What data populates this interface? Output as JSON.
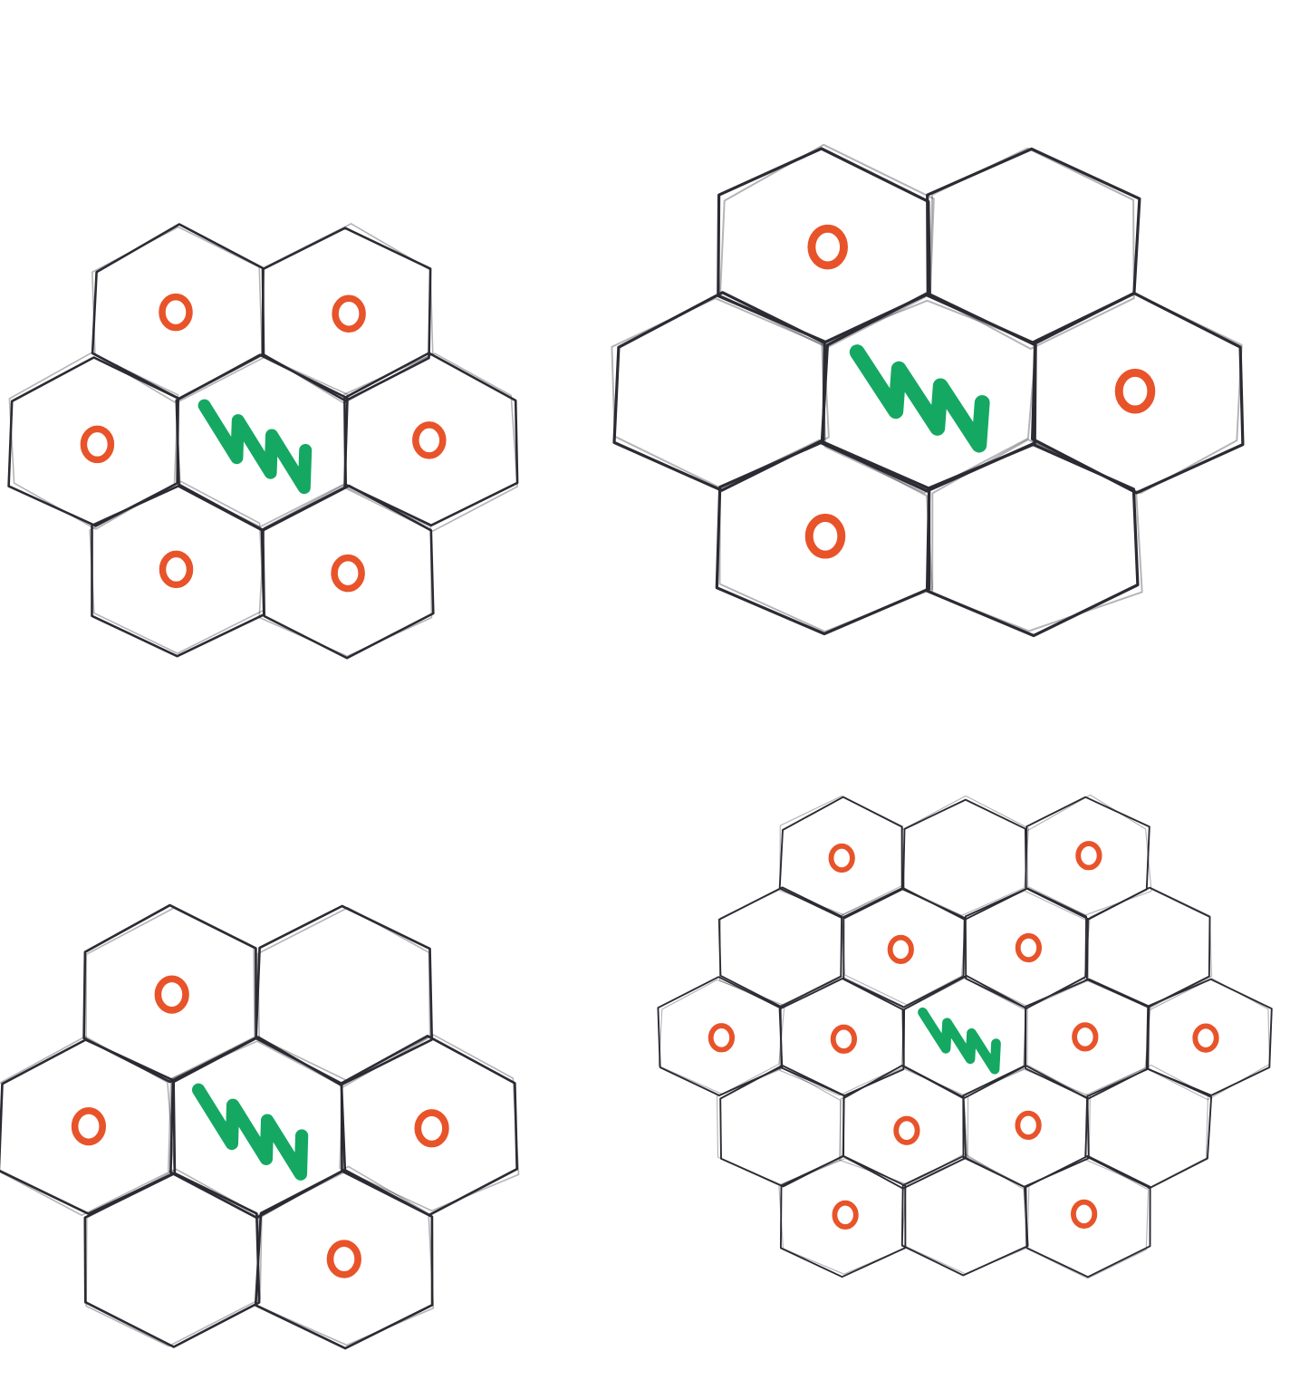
{
  "colors": {
    "background": "#ffffff",
    "outline": "#2b2b33",
    "marker": "#e8532a",
    "highlight": "#15a862"
  },
  "legend": [],
  "panels": [
    {
      "id": "top-left",
      "cells": [
        {
          "row": -2,
          "col": -0.5,
          "marker": "ring"
        },
        {
          "row": -2,
          "col": 0.5,
          "marker": "ring"
        },
        {
          "row": -1,
          "col": -1,
          "marker": "ring"
        },
        {
          "row": -1,
          "col": 0,
          "marker": "zigzag"
        },
        {
          "row": -1,
          "col": 1,
          "marker": "ring"
        },
        {
          "row": 0,
          "col": -0.5,
          "marker": "ring"
        },
        {
          "row": 0,
          "col": 0.5,
          "marker": "ring"
        }
      ]
    },
    {
      "id": "top-right",
      "cells": [
        {
          "row": -2,
          "col": -0.5,
          "marker": "ring"
        },
        {
          "row": -2,
          "col": 0.5,
          "marker": "none"
        },
        {
          "row": -1,
          "col": -1,
          "marker": "none"
        },
        {
          "row": -1,
          "col": 0,
          "marker": "zigzag"
        },
        {
          "row": -1,
          "col": 1,
          "marker": "ring"
        },
        {
          "row": 0,
          "col": -0.5,
          "marker": "ring"
        },
        {
          "row": 0,
          "col": 0.5,
          "marker": "none"
        }
      ]
    },
    {
      "id": "bottom-left",
      "cells": [
        {
          "row": -2,
          "col": -0.5,
          "marker": "ring"
        },
        {
          "row": -2,
          "col": 0.5,
          "marker": "none"
        },
        {
          "row": -1,
          "col": -1,
          "marker": "ring"
        },
        {
          "row": -1,
          "col": 0,
          "marker": "zigzag"
        },
        {
          "row": -1,
          "col": 1,
          "marker": "ring"
        },
        {
          "row": 0,
          "col": -0.5,
          "marker": "none"
        },
        {
          "row": 0,
          "col": 0.5,
          "marker": "ring"
        }
      ]
    },
    {
      "id": "bottom-right",
      "cells": [
        {
          "row": -2,
          "col": -1,
          "marker": "ring"
        },
        {
          "row": -2,
          "col": 0,
          "marker": "none"
        },
        {
          "row": -2,
          "col": 1,
          "marker": "ring"
        },
        {
          "row": -1,
          "col": -1.5,
          "marker": "none"
        },
        {
          "row": -1,
          "col": -0.5,
          "marker": "ring"
        },
        {
          "row": -1,
          "col": 0.5,
          "marker": "ring"
        },
        {
          "row": -1,
          "col": 1.5,
          "marker": "none"
        },
        {
          "row": 0,
          "col": -2,
          "marker": "ring"
        },
        {
          "row": 0,
          "col": -1,
          "marker": "ring"
        },
        {
          "row": 0,
          "col": 0,
          "marker": "zigzag"
        },
        {
          "row": 0,
          "col": 1,
          "marker": "ring"
        },
        {
          "row": 0,
          "col": 2,
          "marker": "ring"
        },
        {
          "row": 1,
          "col": -1.5,
          "marker": "none"
        },
        {
          "row": 1,
          "col": -0.5,
          "marker": "ring"
        },
        {
          "row": 1,
          "col": 0.5,
          "marker": "ring"
        },
        {
          "row": 1,
          "col": 1.5,
          "marker": "none"
        },
        {
          "row": 2,
          "col": -1,
          "marker": "ring"
        },
        {
          "row": 2,
          "col": 0,
          "marker": "none"
        },
        {
          "row": 2,
          "col": 1,
          "marker": "ring"
        }
      ]
    }
  ]
}
